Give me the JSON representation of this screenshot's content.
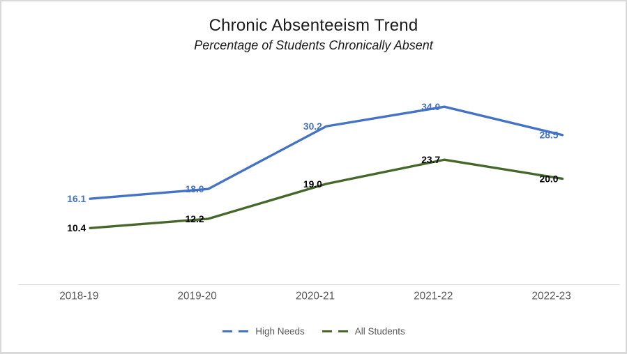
{
  "frame": {
    "background": "#ffffff",
    "border_color": "#d9d9d9"
  },
  "chart_data": {
    "type": "line",
    "title": "Chronic Absenteeism Trend",
    "subtitle": "Percentage of Students Chronically Absent",
    "categories": [
      "2018-19",
      "2019-20",
      "2020-21",
      "2021-22",
      "2022-23"
    ],
    "series": [
      {
        "name": "High Needs",
        "values": [
          16.1,
          18.0,
          30.2,
          34.0,
          28.5
        ],
        "line_color": "#4472C4",
        "label_color": "#4472C4"
      },
      {
        "name": "All Students",
        "values": [
          10.4,
          12.2,
          19.0,
          23.7,
          20.0
        ],
        "line_color": "#45682a",
        "label_color": "#000000"
      }
    ],
    "ylim": [
      0,
      40
    ],
    "grid": false,
    "data_labels": true,
    "data_label_position": "left",
    "legend_position": "bottom",
    "axis_color": "#d9d9d9",
    "tick_label_color": "#595959",
    "legend_text_color": "#595959"
  }
}
